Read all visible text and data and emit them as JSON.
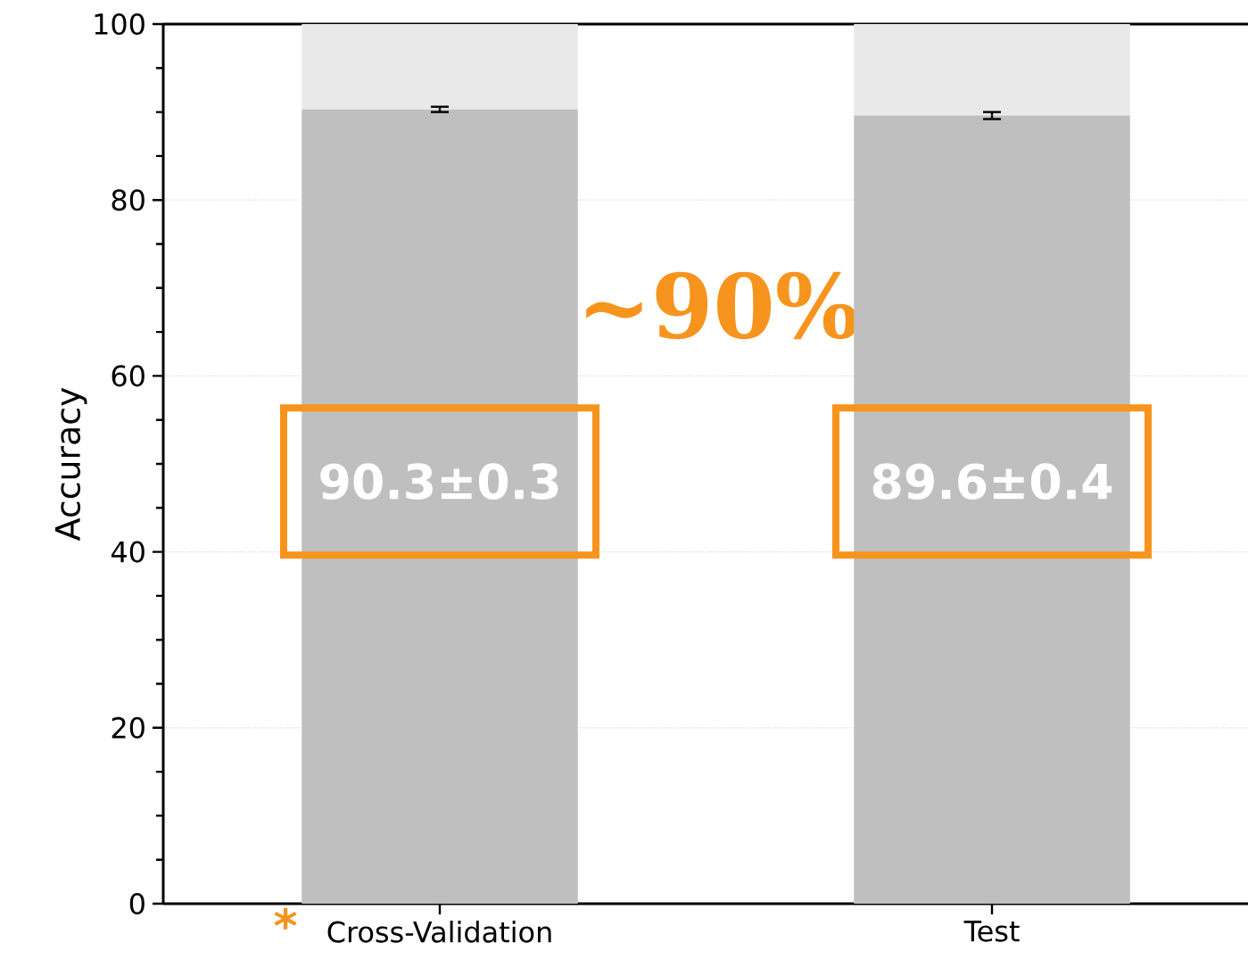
{
  "chart_data": {
    "type": "bar",
    "ylabel": "Accuracy",
    "categories": [
      "Cross-Validation",
      "Test"
    ],
    "stacked": true,
    "series": [
      {
        "color": "#bfbfbf",
        "values": [
          90.3,
          89.6
        ],
        "errors": [
          0.3,
          0.4
        ],
        "value_labels": [
          "90.3±0.3",
          "89.6±0.4"
        ]
      },
      {
        "color": "#e9e9e9",
        "values": [
          9.7,
          10.4
        ]
      }
    ],
    "ylim": [
      0,
      100
    ],
    "yticks": [
      0,
      20,
      40,
      60,
      80,
      100
    ],
    "grid": "y",
    "annotations": [
      "~90%",
      "*"
    ]
  }
}
